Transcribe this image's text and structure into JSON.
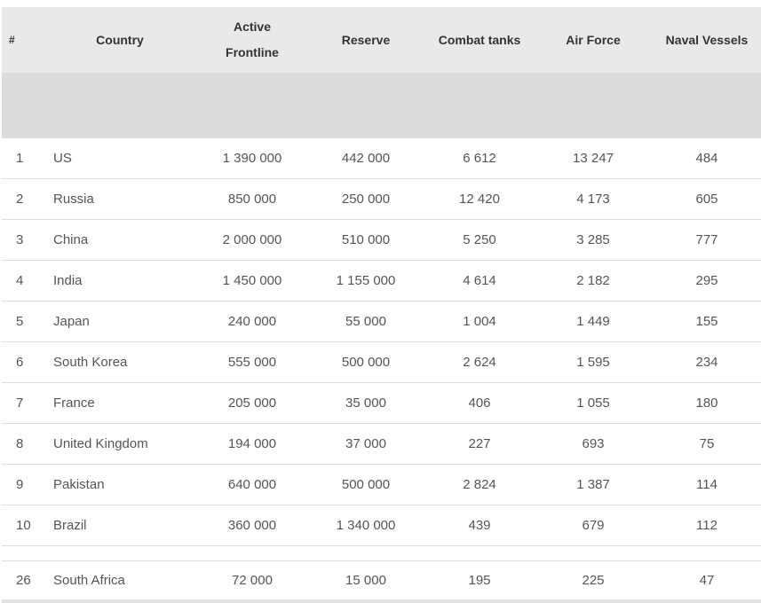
{
  "table": {
    "headers": {
      "rank": "#",
      "country": "Country",
      "active": "Active Frontline",
      "reserve": "Reserve",
      "tanks": "Combat tanks",
      "air": "Air Force",
      "naval": "Naval Vessels"
    },
    "rows": [
      {
        "rank": "1",
        "country": "US",
        "active": "1 390 000",
        "reserve": "442 000",
        "tanks": "6 612",
        "air": "13 247",
        "naval": "484"
      },
      {
        "rank": "2",
        "country": "Russia",
        "active": "850 000",
        "reserve": "250 000",
        "tanks": "12 420",
        "air": "4 173",
        "naval": "605"
      },
      {
        "rank": "3",
        "country": "China",
        "active": "2 000 000",
        "reserve": "510 000",
        "tanks": "5 250",
        "air": "3 285",
        "naval": "777"
      },
      {
        "rank": "4",
        "country": "India",
        "active": "1 450 000",
        "reserve": "1 155 000",
        "tanks": "4 614",
        "air": "2 182",
        "naval": "295"
      },
      {
        "rank": "5",
        "country": "Japan",
        "active": "240 000",
        "reserve": "55 000",
        "tanks": "1 004",
        "air": "1 449",
        "naval": "155"
      },
      {
        "rank": "6",
        "country": "South Korea",
        "active": "555 000",
        "reserve": "500 000",
        "tanks": "2 624",
        "air": "1 595",
        "naval": "234"
      },
      {
        "rank": "7",
        "country": "France",
        "active": "205 000",
        "reserve": "35 000",
        "tanks": "406",
        "air": "1 055",
        "naval": "180"
      },
      {
        "rank": "8",
        "country": "United Kingdom",
        "active": "194 000",
        "reserve": "37 000",
        "tanks": "227",
        "air": "693",
        "naval": "75"
      },
      {
        "rank": "9",
        "country": "Pakistan",
        "active": "640 000",
        "reserve": "500 000",
        "tanks": "2 824",
        "air": "1 387",
        "naval": "114"
      },
      {
        "rank": "10",
        "country": "Brazil",
        "active": "360 000",
        "reserve": "1 340 000",
        "tanks": "439",
        "air": "679",
        "naval": "112"
      }
    ],
    "extra_row": {
      "rank": "26",
      "country": "South Africa",
      "active": "72 000",
      "reserve": "15 000",
      "tanks": "195",
      "air": "225",
      "naval": "47"
    }
  }
}
